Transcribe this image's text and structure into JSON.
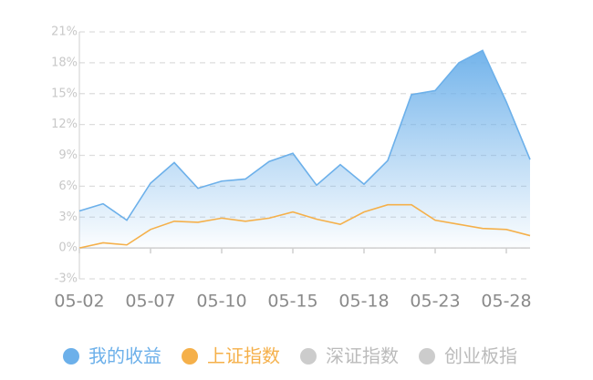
{
  "chart_data": {
    "type": "area-line",
    "categories": [
      "05-02",
      null,
      null,
      "05-07",
      null,
      null,
      "05-10",
      null,
      null,
      "05-15",
      null,
      null,
      "05-18",
      null,
      null,
      "05-23",
      null,
      null,
      "05-28",
      null
    ],
    "series": [
      {
        "name": "我的收益",
        "color": "#6cb0ea",
        "values": [
          3.6,
          4.3,
          2.7,
          6.3,
          8.3,
          5.8,
          6.5,
          6.7,
          8.4,
          9.2,
          6.1,
          8.1,
          6.2,
          8.5,
          14.9,
          15.3,
          18.0,
          19.2,
          14.2,
          8.6
        ]
      },
      {
        "name": "上证指数",
        "color": "#f5b04a",
        "values": [
          0,
          0.5,
          0.3,
          1.8,
          2.6,
          2.5,
          2.9,
          2.6,
          2.9,
          3.5,
          2.8,
          2.3,
          3.5,
          4.2,
          4.2,
          2.7,
          2.3,
          1.9,
          1.8,
          1.2
        ]
      }
    ],
    "legend_inactive": [
      {
        "name": "深证指数",
        "color": "#cccccc"
      },
      {
        "name": "创业板指",
        "color": "#cccccc"
      }
    ],
    "ylim": [
      -3,
      21
    ],
    "yticks": [
      {
        "value": -3,
        "label": "-3%"
      },
      {
        "value": 0,
        "label": "0%"
      },
      {
        "value": 3,
        "label": "3%"
      },
      {
        "value": 6,
        "label": "6%"
      },
      {
        "value": 9,
        "label": "9%"
      },
      {
        "value": 12,
        "label": "12%"
      },
      {
        "value": 15,
        "label": "15%"
      },
      {
        "value": 18,
        "label": "18%"
      },
      {
        "value": 21,
        "label": "21%"
      }
    ],
    "grid": true
  }
}
